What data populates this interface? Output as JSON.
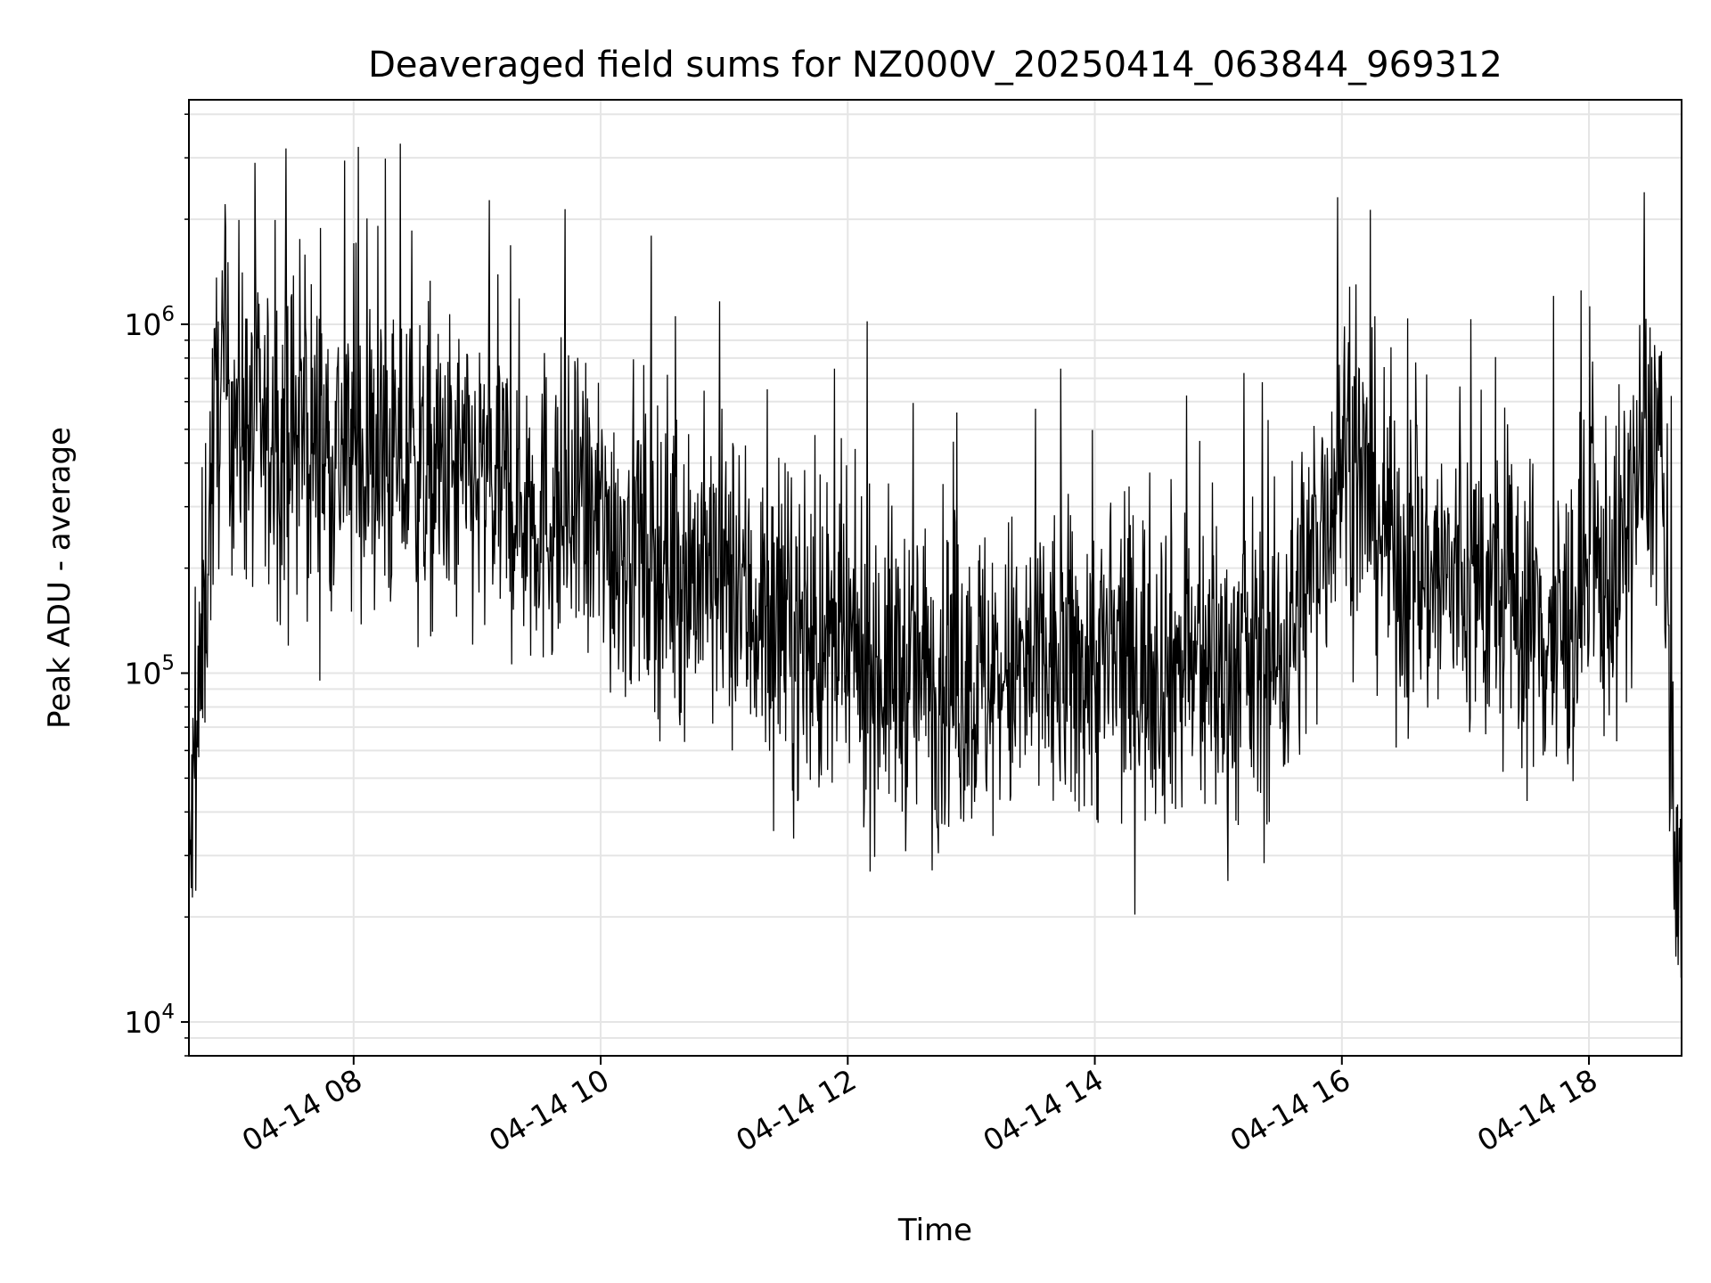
{
  "chart_data": {
    "type": "line",
    "title": "Deaveraged field sums for NZ000V_20250414_063844_969312",
    "xlabel": "Time",
    "ylabel": "Peak ADU - average",
    "yscale": "log",
    "ylim": [
      8000,
      4400000
    ],
    "xlim": [
      "2025-04-14T06:40",
      "2025-04-14T18:45"
    ],
    "grid": true,
    "line_color": "#000000",
    "grid_color": "#e5e5e5",
    "x_ticks": [
      {
        "label": "04-14 08",
        "value": "2025-04-14T08:00"
      },
      {
        "label": "04-14 10",
        "value": "2025-04-14T10:00"
      },
      {
        "label": "04-14 12",
        "value": "2025-04-14T12:00"
      },
      {
        "label": "04-14 14",
        "value": "2025-04-14T14:00"
      },
      {
        "label": "04-14 16",
        "value": "2025-04-14T16:00"
      },
      {
        "label": "04-14 18",
        "value": "2025-04-14T18:00"
      }
    ],
    "y_ticks": [
      {
        "base": "10",
        "exp": "4",
        "value": 10000
      },
      {
        "base": "10",
        "exp": "5",
        "value": 100000
      },
      {
        "base": "10",
        "exp": "6",
        "value": 1000000
      }
    ],
    "series": [
      {
        "x": [
          "2025-04-14T06:40",
          "2025-04-14T06:45",
          "2025-04-14T06:50",
          "2025-04-14T06:55",
          "2025-04-14T07:00",
          "2025-04-14T07:10",
          "2025-04-14T07:20",
          "2025-04-14T07:30",
          "2025-04-14T07:45",
          "2025-04-14T08:00",
          "2025-04-14T08:30",
          "2025-04-14T09:00",
          "2025-04-14T09:30",
          "2025-04-14T10:00",
          "2025-04-14T10:30",
          "2025-04-14T11:00",
          "2025-04-14T11:30",
          "2025-04-14T12:00",
          "2025-04-14T12:30",
          "2025-04-14T13:00",
          "2025-04-14T13:30",
          "2025-04-14T14:00",
          "2025-04-14T14:30",
          "2025-04-14T15:00",
          "2025-04-14T15:30",
          "2025-04-14T15:45",
          "2025-04-14T16:00",
          "2025-04-14T16:15",
          "2025-04-14T16:30",
          "2025-04-14T17:00",
          "2025-04-14T17:30",
          "2025-04-14T17:45",
          "2025-04-14T18:00",
          "2025-04-14T18:15",
          "2025-04-14T18:25",
          "2025-04-14T18:35",
          "2025-04-14T18:40",
          "2025-04-14T18:45"
        ],
        "values": [
          25000,
          80000,
          300000,
          700000,
          600000,
          500000,
          450000,
          480000,
          450000,
          420000,
          380000,
          350000,
          300000,
          260000,
          220000,
          180000,
          130000,
          110000,
          100000,
          95000,
          100000,
          105000,
          110000,
          100000,
          110000,
          200000,
          450000,
          300000,
          200000,
          180000,
          150000,
          120000,
          180000,
          200000,
          400000,
          500000,
          40000,
          15000
        ]
      }
    ]
  }
}
